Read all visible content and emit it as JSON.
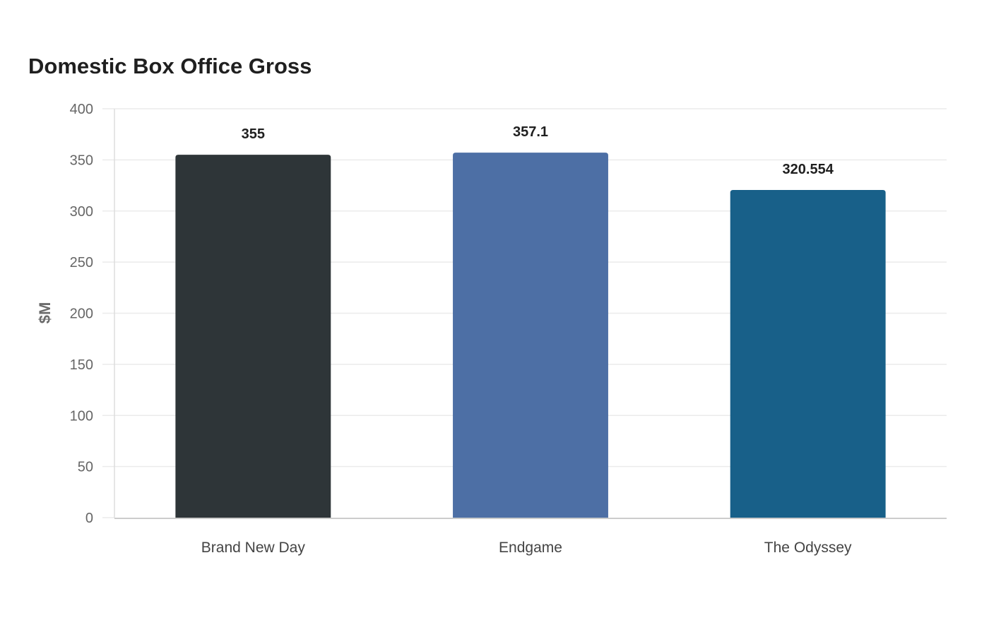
{
  "chart_data": {
    "type": "bar",
    "title": "Domestic Box Office Gross",
    "xlabel": "",
    "ylabel": "$M",
    "categories": [
      "Brand New Day",
      "Endgame",
      "The Odyssey"
    ],
    "values": [
      355,
      357.1,
      320.554
    ],
    "value_labels": [
      "355",
      "357.1",
      "320.554"
    ],
    "bar_colors": [
      "#2e3538",
      "#4d6fa5",
      "#186089"
    ],
    "ylim": [
      0,
      400
    ],
    "yticks": [
      0,
      50,
      100,
      150,
      200,
      250,
      300,
      350,
      400
    ],
    "grid": true,
    "legend": "none"
  }
}
